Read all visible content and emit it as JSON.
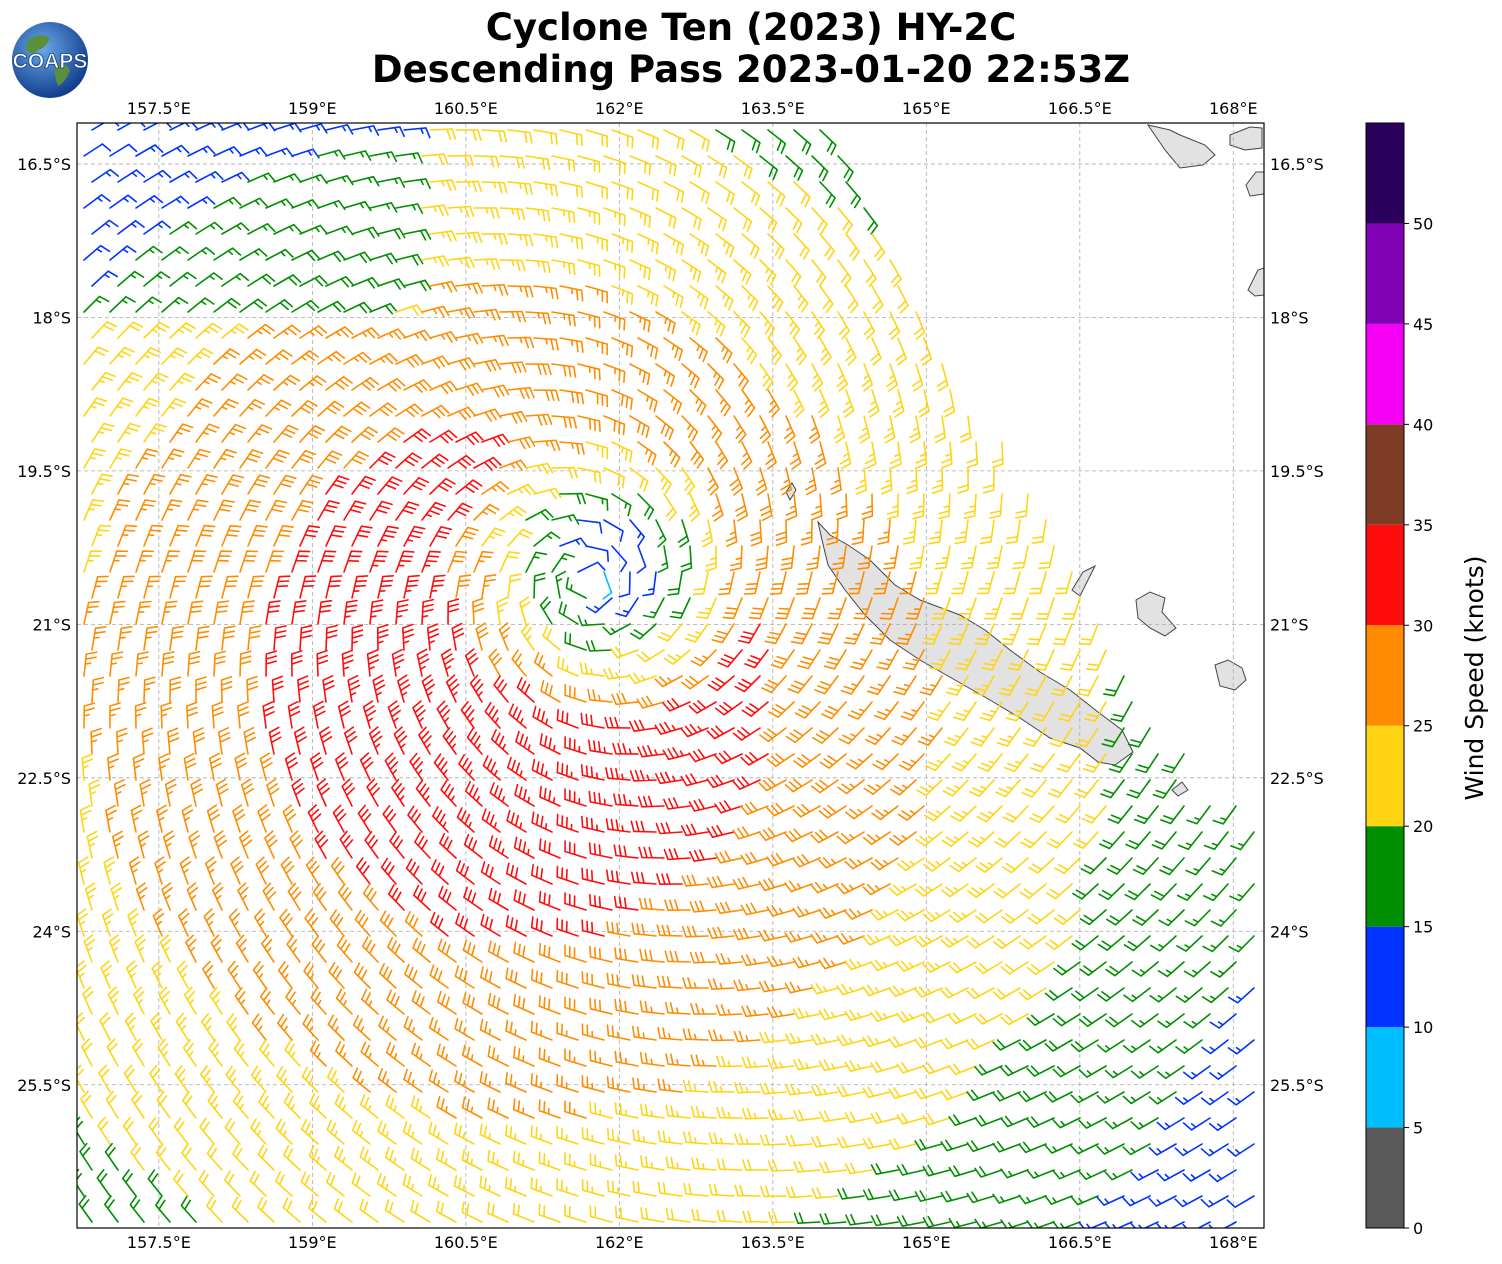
{
  "title": {
    "line1": "Cyclone Ten (2023) HY-2C",
    "line2": "Descending Pass 2023-01-20 22:53Z"
  },
  "logo": {
    "text": "COAPS",
    "icon": "globe-logo-icon"
  },
  "map": {
    "lon_ticks": [
      "157.5°E",
      "159°E",
      "160.5°E",
      "162°E",
      "163.5°E",
      "165°E",
      "166.5°E",
      "168°E"
    ],
    "lon_values": [
      157.5,
      159,
      160.5,
      162,
      163.5,
      165,
      166.5,
      168
    ],
    "lat_ticks": [
      "16.5°S",
      "18°S",
      "19.5°S",
      "21°S",
      "22.5°S",
      "24°S",
      "25.5°S"
    ],
    "lat_values": [
      -16.5,
      -18,
      -19.5,
      -21,
      -22.5,
      -24,
      -25.5
    ],
    "lon_range": [
      156.7,
      168.3
    ],
    "lat_range": [
      -16.1,
      -26.9
    ],
    "grid": "dashed",
    "land_color": "#e2e2e2",
    "coast_color": "#444444",
    "cyclone_center": {
      "lon": 161.7,
      "lat": -20.6
    }
  },
  "colorbar": {
    "label": "Wind Speed (knots)",
    "ticks": [
      "0",
      "5",
      "10",
      "15",
      "20",
      "25",
      "30",
      "35",
      "40",
      "45",
      "50"
    ],
    "bins": [
      {
        "min": 0,
        "max": 5,
        "color": "#595959"
      },
      {
        "min": 5,
        "max": 10,
        "color": "#00bfff"
      },
      {
        "min": 10,
        "max": 15,
        "color": "#0033ff"
      },
      {
        "min": 15,
        "max": 20,
        "color": "#008f00"
      },
      {
        "min": 20,
        "max": 25,
        "color": "#ffd413"
      },
      {
        "min": 25,
        "max": 30,
        "color": "#ff8c00"
      },
      {
        "min": 30,
        "max": 35,
        "color": "#ff0d0d"
      },
      {
        "min": 35,
        "max": 40,
        "color": "#803d26"
      },
      {
        "min": 40,
        "max": 45,
        "color": "#f500f5"
      },
      {
        "min": 45,
        "max": 50,
        "color": "#8000b3"
      },
      {
        "min": 50,
        "max": 55,
        "color": "#2a005c"
      }
    ]
  }
}
